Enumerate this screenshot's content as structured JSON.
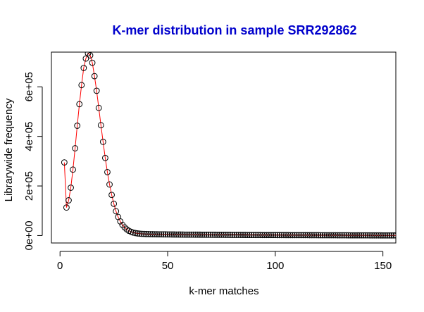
{
  "chart_data": {
    "type": "scatter",
    "title": "K-mer distribution in sample SRR292862",
    "xlabel": "k-mer matches",
    "ylabel": "Librarywide frequency",
    "xlim": [
      -4,
      156
    ],
    "ylim": [
      -30000,
      740000
    ],
    "x_ticks": [
      {
        "value": 0,
        "label": "0"
      },
      {
        "value": 50,
        "label": "50"
      },
      {
        "value": 100,
        "label": "100"
      },
      {
        "value": 150,
        "label": "150"
      }
    ],
    "y_ticks": [
      {
        "value": 0,
        "label": "0e+00"
      },
      {
        "value": 200000,
        "label": "2e+05"
      },
      {
        "value": 400000,
        "label": "4e+05"
      },
      {
        "value": 600000,
        "label": "6e+05"
      }
    ],
    "series": [
      {
        "marker": "open-circle",
        "marker_color": "#000000",
        "line_color": "#ff0000",
        "x": [
          2,
          3,
          4,
          5,
          6,
          7,
          8,
          9,
          10,
          11,
          12,
          13,
          14,
          15,
          16,
          17,
          18,
          19,
          20,
          21,
          22,
          23,
          24,
          25,
          26,
          27,
          28,
          29,
          30,
          31,
          32,
          33,
          34,
          35,
          36,
          37,
          38,
          39,
          40,
          41,
          42,
          43,
          44,
          45,
          46,
          47,
          48,
          49,
          50,
          51,
          52,
          53,
          54,
          55,
          56,
          57,
          58,
          59,
          60,
          61,
          62,
          63,
          64,
          65,
          66,
          67,
          68,
          69,
          70,
          71,
          72,
          73,
          74,
          75,
          76,
          77,
          78,
          79,
          80,
          81,
          82,
          83,
          84,
          85,
          86,
          87,
          88,
          89,
          90,
          91,
          92,
          93,
          94,
          95,
          96,
          97,
          98,
          99,
          100,
          101,
          102,
          103,
          104,
          105,
          106,
          107,
          108,
          109,
          110,
          111,
          112,
          113,
          114,
          115,
          116,
          117,
          118,
          119,
          120,
          121,
          122,
          123,
          124,
          125,
          126,
          127,
          128,
          129,
          130,
          131,
          132,
          133,
          134,
          135,
          136,
          137,
          138,
          139,
          140,
          141,
          142,
          143,
          144,
          145,
          146,
          147,
          148,
          149,
          150,
          151,
          152,
          153,
          154,
          155,
          156
        ],
        "y": [
          295000,
          113000,
          142000,
          193000,
          266000,
          352000,
          443000,
          530000,
          607000,
          676000,
          714000,
          735000,
          727000,
          697000,
          643000,
          584000,
          515000,
          445000,
          378000,
          313000,
          256000,
          206000,
          164000,
          128000,
          98000,
          75000,
          57000,
          43000,
          33000,
          25000,
          19000,
          15000,
          12000,
          10000,
          8500,
          7500,
          7000,
          6500,
          6000,
          5800,
          5600,
          5400,
          5200,
          5000,
          4900,
          4800,
          4700,
          4600,
          4500,
          4400,
          4300,
          4200,
          4100,
          4000,
          3950,
          3900,
          3850,
          3800,
          3750,
          3700,
          3650,
          3600,
          3550,
          3500,
          3450,
          3400,
          3350,
          3300,
          3250,
          3200,
          3150,
          3100,
          3050,
          3000,
          2950,
          2900,
          2850,
          2800,
          2750,
          2700,
          2650,
          2600,
          2550,
          2500,
          2450,
          2400,
          2350,
          2300,
          2250,
          2200,
          2150,
          2100,
          2050,
          2000,
          1975,
          1950,
          1925,
          1900,
          1875,
          1850,
          1825,
          1800,
          1775,
          1750,
          1725,
          1700,
          1675,
          1650,
          1625,
          1600,
          1575,
          1550,
          1525,
          1500,
          1475,
          1450,
          1425,
          1400,
          1375,
          1350,
          1325,
          1300,
          1275,
          1250,
          1225,
          1200,
          1175,
          1150,
          1125,
          1100,
          1075,
          1050,
          1025,
          1000,
          975,
          950,
          925,
          900,
          875,
          850,
          825,
          800,
          775,
          750,
          725,
          700,
          675,
          650,
          625,
          600,
          575,
          550,
          525,
          500,
          475
        ]
      }
    ]
  }
}
